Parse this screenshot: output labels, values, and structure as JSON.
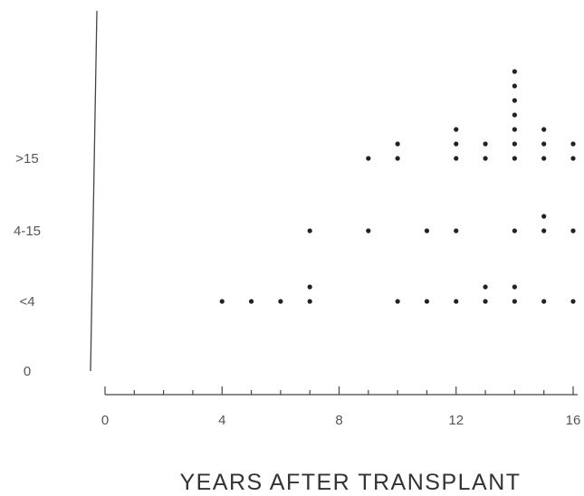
{
  "chart_data": {
    "type": "scatter",
    "title": "",
    "xlabel": "YEARS AFTER TRANSPLANT",
    "ylabel": "",
    "xlim": [
      0,
      16
    ],
    "x_ticks": [
      "0",
      "4",
      "8",
      "12",
      "16"
    ],
    "y_categories": [
      "0",
      "<4",
      "4-15",
      ">15"
    ],
    "grid": false,
    "legend": "none",
    "marker_color": "#222222",
    "series": [
      {
        "category": "<4",
        "points": [
          {
            "x": 4,
            "count": 1
          },
          {
            "x": 5,
            "count": 1
          },
          {
            "x": 6,
            "count": 1
          },
          {
            "x": 7,
            "count": 2
          },
          {
            "x": 10,
            "count": 1
          },
          {
            "x": 11,
            "count": 1
          },
          {
            "x": 12,
            "count": 1
          },
          {
            "x": 13,
            "count": 2
          },
          {
            "x": 14,
            "count": 2
          },
          {
            "x": 15,
            "count": 1
          },
          {
            "x": 16,
            "count": 1
          }
        ]
      },
      {
        "category": "4-15",
        "points": [
          {
            "x": 7,
            "count": 1
          },
          {
            "x": 9,
            "count": 1
          },
          {
            "x": 11,
            "count": 1
          },
          {
            "x": 12,
            "count": 1
          },
          {
            "x": 14,
            "count": 1
          },
          {
            "x": 15,
            "count": 2
          },
          {
            "x": 16,
            "count": 1
          }
        ]
      },
      {
        "category": ">15",
        "points": [
          {
            "x": 9,
            "count": 1
          },
          {
            "x": 10,
            "count": 2
          },
          {
            "x": 12,
            "count": 3
          },
          {
            "x": 13,
            "count": 2
          },
          {
            "x": 14,
            "count": 7
          },
          {
            "x": 15,
            "count": 3
          },
          {
            "x": 16,
            "count": 2
          }
        ]
      }
    ]
  }
}
